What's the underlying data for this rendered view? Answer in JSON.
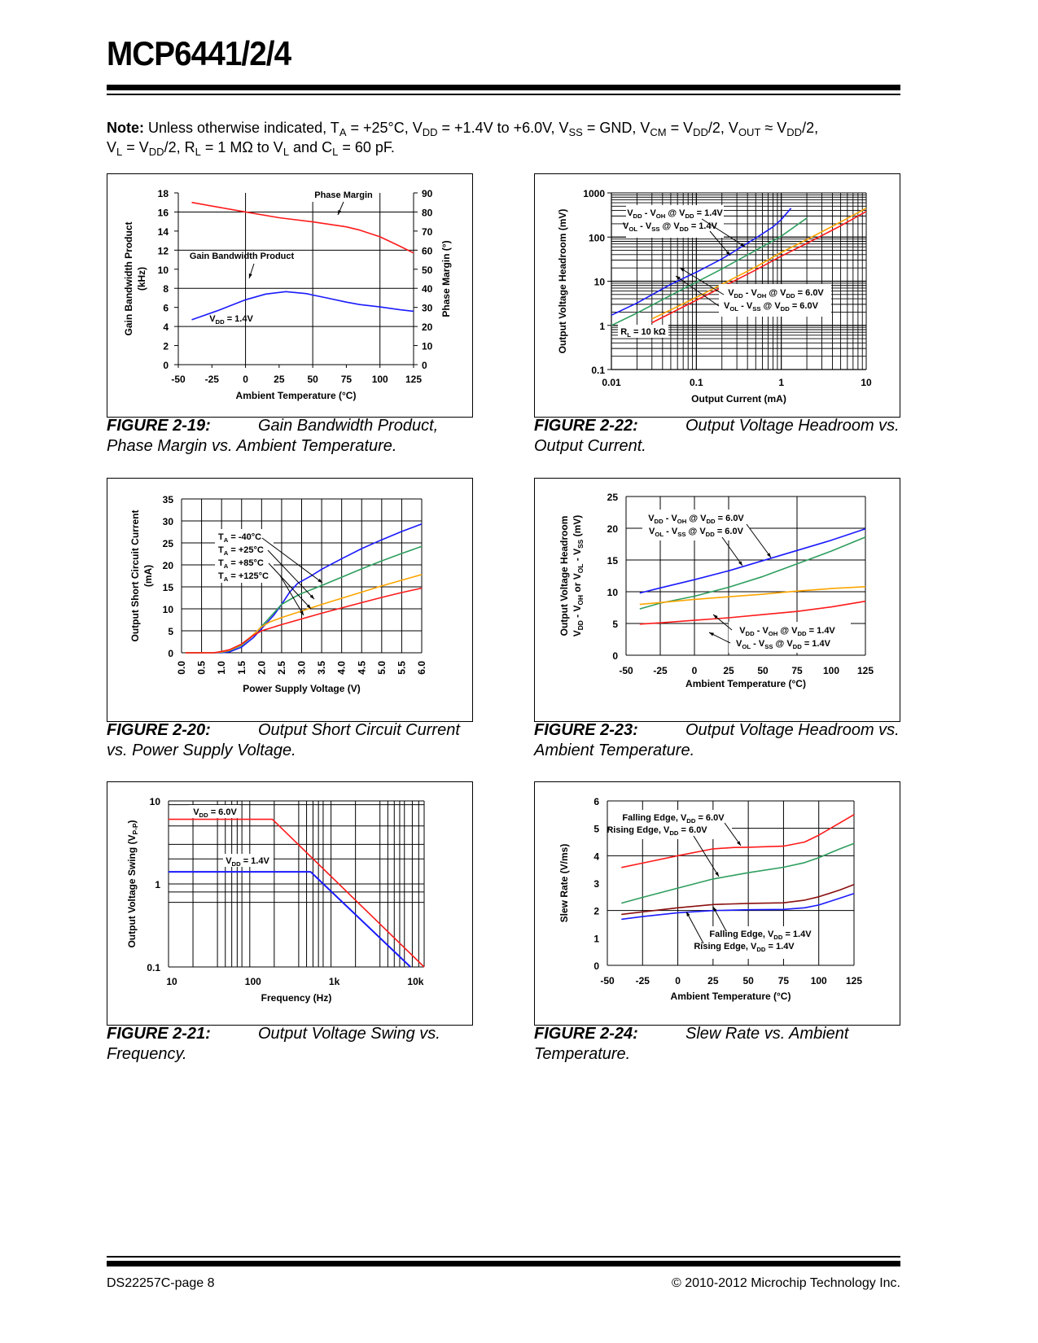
{
  "header": {
    "title": "MCP6441/2/4"
  },
  "note": {
    "label": "Note:",
    "line1": "Unless otherwise indicated, T_A = +25°C, V_DD = +1.4V to +6.0V, V_SS = GND, V_CM = V_DD/2, V_OUT ≈ V_DD/2,",
    "line2": "V_L = V_DD/2, R_L = 1 MΩ to V_L and C_L = 60 pF."
  },
  "footer": {
    "left": "DS22257C-page 8",
    "right": "© 2010-2012 Microchip Technology Inc."
  },
  "colors": {
    "red": "#ff1a1a",
    "blue": "#1a1aff",
    "green": "#2e9e5e",
    "orange": "#ffa500",
    "darkred": "#8b1010"
  },
  "chart_data": [
    {
      "id": "fig-2-19",
      "type": "line",
      "caption_num": "FIGURE 2-19:",
      "caption_text": "Gain Bandwidth Product, Phase Margin vs. Ambient Temperature.",
      "xlabel": "Ambient Temperature (°C)",
      "ylabel": "Gain Bandwidth Product (kHz)",
      "ylabel2": "Phase Margin (°)",
      "xlim": [
        -50,
        125
      ],
      "ylim": [
        0,
        18
      ],
      "y2lim": [
        0,
        90
      ],
      "xticks": [
        -50,
        -25,
        0,
        25,
        50,
        75,
        100,
        125
      ],
      "yticks": [
        0,
        2,
        4,
        6,
        8,
        10,
        12,
        14,
        16,
        18
      ],
      "y2ticks": [
        0,
        10,
        20,
        30,
        40,
        50,
        60,
        70,
        80,
        90
      ],
      "xgrid": [
        0,
        50,
        100
      ],
      "ygrid": [
        4,
        8,
        12,
        16
      ],
      "series": [
        {
          "name": "Phase Margin",
          "axis": "right",
          "color": "red",
          "x": [
            -40,
            -20,
            0,
            25,
            50,
            75,
            85,
            100,
            115,
            125
          ],
          "y": [
            85,
            82.5,
            80,
            77,
            74.8,
            72.2,
            70.5,
            67,
            62,
            58.5
          ]
        },
        {
          "name": "Gain Bandwidth Product",
          "axis": "left",
          "color": "blue",
          "x": [
            -40,
            -20,
            0,
            15,
            30,
            45,
            60,
            75,
            85,
            100,
            115,
            125
          ],
          "y": [
            4.7,
            5.7,
            6.8,
            7.4,
            7.65,
            7.45,
            7.0,
            6.55,
            6.3,
            6.05,
            5.75,
            5.6
          ]
        }
      ],
      "annotations": [
        {
          "text": "Phase Margin"
        },
        {
          "text": "Gain Bandwidth Product"
        },
        {
          "text": "V_DD = 1.4V"
        }
      ]
    },
    {
      "id": "fig-2-22",
      "type": "line",
      "caption_num": "FIGURE 2-22:",
      "caption_text": "Output Voltage Headroom vs. Output Current.",
      "xlabel": "Output Current (mA)",
      "ylabel": "Output Voltage Headroom (mV)",
      "xscale": "log",
      "yscale": "log",
      "xlim": [
        0.01,
        10
      ],
      "ylim": [
        0.1,
        1000
      ],
      "xticks": [
        "0.01",
        "0.1",
        "1",
        "10"
      ],
      "yticks": [
        "0.1",
        "1",
        "10",
        "100",
        "1000"
      ],
      "series": [
        {
          "name": "V_DD - V_OH @ V_DD = 1.4V",
          "color": "blue",
          "x": [
            0.01,
            0.02,
            0.05,
            0.1,
            0.2,
            0.5,
            0.8,
            1.0,
            1.3
          ],
          "y": [
            1.7,
            3.2,
            8.5,
            16,
            32,
            95,
            170,
            250,
            450
          ]
        },
        {
          "name": "V_OL - V_SS @ V_DD = 1.4V",
          "color": "green",
          "x": [
            0.01,
            0.02,
            0.05,
            0.1,
            0.2,
            0.5,
            1.0,
            2.0
          ],
          "y": [
            1.0,
            1.9,
            4.8,
            9.5,
            19,
            50,
            105,
            270
          ]
        },
        {
          "name": "V_DD - V_OH @ V_DD = 6.0V",
          "color": "orange",
          "x": [
            0.03,
            0.1,
            0.2,
            0.5,
            1,
            2,
            5,
            10
          ],
          "y": [
            1.4,
            4.3,
            8.5,
            21,
            45,
            88,
            220,
            450
          ]
        },
        {
          "name": "V_OL - V_SS @ V_DD = 6.0V",
          "color": "red",
          "x": [
            0.03,
            0.1,
            0.2,
            0.5,
            1,
            2,
            5,
            10
          ],
          "y": [
            1.15,
            3.7,
            7.3,
            18,
            37,
            72,
            180,
            380
          ]
        }
      ],
      "annotations": [
        {
          "text": "V_DD - V_OH @ V_DD = 1.4V"
        },
        {
          "text": "V_OL - V_SS @ V_DD = 1.4V"
        },
        {
          "text": "V_DD - V_OH @ V_DD = 6.0V"
        },
        {
          "text": "V_OL - V_SS @ V_DD = 6.0V"
        },
        {
          "text": "R_L = 10 kΩ"
        }
      ]
    },
    {
      "id": "fig-2-20",
      "type": "line",
      "caption_num": "FIGURE 2-20:",
      "caption_text": "Output Short Circuit Current vs. Power Supply Voltage.",
      "xlabel": "Power Supply Voltage (V)",
      "ylabel": "Output Short Circuit Current (mA)",
      "xlim": [
        0,
        6
      ],
      "ylim": [
        0,
        35
      ],
      "xticks": [
        "0.0",
        "0.5",
        "1.0",
        "1.5",
        "2.0",
        "2.5",
        "3.0",
        "3.5",
        "4.0",
        "4.5",
        "5.0",
        "5.5",
        "6.0"
      ],
      "yticks": [
        0,
        5,
        10,
        15,
        20,
        25,
        30,
        35
      ],
      "series": [
        {
          "name": "T_A = -40°C",
          "color": "blue",
          "x": [
            0.1,
            0.8,
            1.0,
            1.2,
            1.5,
            1.8,
            2.0,
            2.3,
            2.5,
            2.7,
            2.9,
            3.2,
            3.5,
            4.0,
            4.5,
            5.0,
            5.5,
            6.0
          ],
          "y": [
            0,
            0,
            0,
            0.2,
            1.3,
            3.5,
            5.5,
            8.5,
            11,
            13.8,
            15.8,
            17.3,
            19,
            21.4,
            23.7,
            25.7,
            27.6,
            29.3
          ]
        },
        {
          "name": "T_A = +25°C",
          "color": "green",
          "x": [
            0.1,
            0.8,
            1.0,
            1.2,
            1.5,
            1.8,
            2.0,
            2.3,
            2.5,
            2.8,
            3.0,
            3.5,
            4.0,
            4.5,
            5.0,
            5.5,
            6.0
          ],
          "y": [
            0,
            0,
            0.1,
            0.5,
            1.7,
            4.0,
            6.0,
            9.0,
            11.0,
            12.6,
            13.5,
            15.3,
            17.2,
            19.1,
            20.9,
            22.6,
            24.2
          ]
        },
        {
          "name": "T_A = +85°C",
          "color": "orange",
          "x": [
            0.1,
            0.8,
            1.0,
            1.2,
            1.5,
            1.8,
            2.0,
            2.2,
            2.5,
            3.0,
            3.5,
            4.0,
            4.5,
            5.0,
            5.5,
            6.0
          ],
          "y": [
            0,
            0,
            0.2,
            0.6,
            1.9,
            4.2,
            5.9,
            7.0,
            8.0,
            9.5,
            11.0,
            12.4,
            13.8,
            15.2,
            16.5,
            17.8
          ]
        },
        {
          "name": "T_A = +125°C",
          "color": "red",
          "x": [
            0.1,
            0.8,
            1.0,
            1.2,
            1.5,
            1.8,
            2.0,
            2.5,
            3.0,
            3.5,
            4.0,
            4.5,
            5.0,
            5.5,
            6.0
          ],
          "y": [
            0,
            0,
            0.3,
            0.7,
            2.0,
            4.0,
            5.0,
            6.4,
            7.7,
            9.0,
            10.2,
            11.4,
            12.6,
            13.7,
            14.7
          ]
        }
      ]
    },
    {
      "id": "fig-2-23",
      "type": "line",
      "caption_num": "FIGURE 2-23:",
      "caption_text": "Output Voltage Headroom vs. Ambient Temperature.",
      "xlabel": "Ambient Temperature (°C)",
      "ylabel": "Output Voltage Headroom",
      "ylabel2": "V_DD - V_OH or V_OL - V_SS (mV)",
      "xlim": [
        -50,
        125
      ],
      "ylim": [
        0,
        25
      ],
      "xticks": [
        -50,
        -25,
        0,
        25,
        50,
        75,
        100,
        125
      ],
      "yticks": [
        0,
        5,
        10,
        15,
        20,
        25
      ],
      "series": [
        {
          "name": "V_DD - V_OH @ V_DD = 6.0V",
          "color": "blue",
          "x": [
            -40,
            -25,
            0,
            25,
            50,
            75,
            100,
            125
          ],
          "y": [
            9.8,
            10.6,
            11.9,
            13.3,
            14.9,
            16.5,
            18.1,
            19.9
          ]
        },
        {
          "name": "V_OL - V_SS @ V_DD = 6.0V",
          "color": "green",
          "x": [
            -40,
            -25,
            0,
            25,
            50,
            75,
            100,
            125
          ],
          "y": [
            7.3,
            8.2,
            9.3,
            10.7,
            12.4,
            14.4,
            16.4,
            18.6
          ]
        },
        {
          "name": "V_DD - V_OH @ V_DD = 1.4V",
          "color": "orange",
          "x": [
            -40,
            -25,
            0,
            25,
            50,
            75,
            100,
            125
          ],
          "y": [
            8.0,
            8.3,
            8.8,
            9.2,
            9.6,
            10.1,
            10.5,
            10.8
          ]
        },
        {
          "name": "V_OL - V_SS @ V_DD = 1.4V",
          "color": "red",
          "x": [
            -40,
            -25,
            0,
            25,
            50,
            75,
            100,
            125
          ],
          "y": [
            4.9,
            5.1,
            5.5,
            5.9,
            6.4,
            6.9,
            7.6,
            8.5
          ]
        }
      ]
    },
    {
      "id": "fig-2-21",
      "type": "line",
      "caption_num": "FIGURE 2-21:",
      "caption_text": "Output Voltage Swing vs. Frequency.",
      "xlabel": "Frequency (Hz)",
      "ylabel": "Output Voltage Swing (V_P-P)",
      "xscale": "log",
      "yscale": "log",
      "xlim": [
        10,
        14000
      ],
      "ylim": [
        0.1,
        10
      ],
      "xticks": [
        "10",
        "100",
        "1k",
        "10k"
      ],
      "yticks": [
        "0.1",
        "1",
        "10"
      ],
      "series": [
        {
          "name": "V_DD = 6.0V",
          "color": "red",
          "x": [
            10,
            190,
            14000
          ],
          "y": [
            6.0,
            6.0,
            0.1
          ]
        },
        {
          "name": "V_DD = 1.4V",
          "color": "blue",
          "x": [
            10,
            560,
            9500
          ],
          "y": [
            1.4,
            1.4,
            0.1
          ]
        }
      ]
    },
    {
      "id": "fig-2-24",
      "type": "line",
      "caption_num": "FIGURE 2-24:",
      "caption_text": "Slew Rate vs. Ambient Temperature.",
      "xlabel": "Ambient Temperature (°C)",
      "ylabel": "Slew Rate (V/ms)",
      "xlim": [
        -50,
        125
      ],
      "ylim": [
        0,
        6
      ],
      "xticks": [
        -50,
        -25,
        0,
        25,
        50,
        75,
        100,
        125
      ],
      "yticks": [
        0,
        1,
        2,
        3,
        4,
        5,
        6
      ],
      "series": [
        {
          "name": "Falling Edge, V_DD = 6.0V",
          "color": "red",
          "x": [
            -40,
            -25,
            0,
            25,
            40,
            50,
            75,
            90,
            100,
            115,
            125
          ],
          "y": [
            3.57,
            3.73,
            4.0,
            4.25,
            4.3,
            4.31,
            4.35,
            4.5,
            4.75,
            5.2,
            5.5
          ]
        },
        {
          "name": "Rising Edge, V_DD = 6.0V",
          "color": "green",
          "x": [
            -40,
            -25,
            0,
            25,
            50,
            75,
            90,
            100,
            115,
            125
          ],
          "y": [
            2.27,
            2.48,
            2.82,
            3.15,
            3.38,
            3.58,
            3.75,
            3.93,
            4.25,
            4.45
          ]
        },
        {
          "name": "Falling Edge, V_DD = 1.4V",
          "color": "darkred",
          "x": [
            -40,
            -25,
            0,
            25,
            50,
            75,
            90,
            100,
            115,
            125
          ],
          "y": [
            1.86,
            1.95,
            2.1,
            2.22,
            2.26,
            2.28,
            2.38,
            2.5,
            2.75,
            2.95
          ]
        },
        {
          "name": "Rising Edge, V_DD = 1.4V",
          "color": "blue",
          "x": [
            -40,
            -25,
            0,
            25,
            50,
            75,
            90,
            100,
            115,
            125
          ],
          "y": [
            1.68,
            1.78,
            1.92,
            2.0,
            2.03,
            2.04,
            2.1,
            2.2,
            2.45,
            2.62
          ]
        }
      ]
    }
  ]
}
